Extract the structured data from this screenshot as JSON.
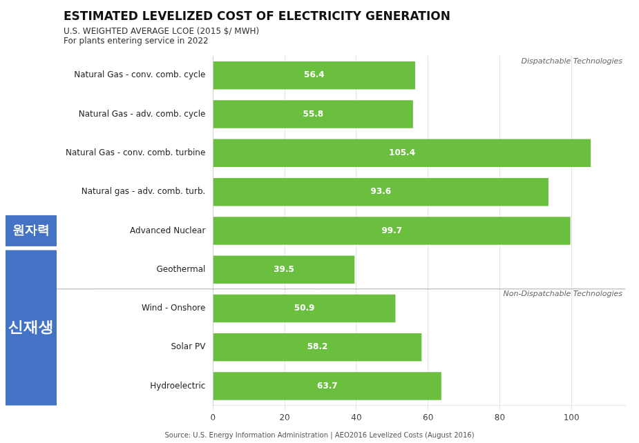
{
  "chart_data": {
    "type": "bar",
    "orientation": "horizontal",
    "title": "ESTIMATED LEVELIZED COST OF ELECTRICITY GENERATION",
    "subtitle": [
      "U.S. WEIGHTED AVERAGE LCOE (2015 $/ MWH)",
      "For plants entering service in 2022"
    ],
    "source": "Source: U.S. Energy Information Administration | AEO2016 Levelized Costs (August 2016)",
    "categories": [
      "Natural Gas - conv. comb. cycle",
      "Natural Gas - adv. comb. cycle",
      "Natural Gas - conv. comb. turbine",
      "Natural gas - adv. comb. turb.",
      "Advanced Nuclear",
      "Geothermal",
      "Wind - Onshore",
      "Solar PV",
      "Hydroelectric"
    ],
    "values": [
      56.4,
      55.8,
      105.4,
      93.6,
      99.7,
      39.5,
      50.9,
      58.2,
      63.7
    ],
    "color": "#6abf3e",
    "xlim": [
      0,
      115
    ],
    "xticks": [
      0,
      20,
      40,
      60,
      80,
      100
    ],
    "grid": true,
    "data_labels": true,
    "annotations": [
      {
        "text": "Dispatchable Technologies",
        "categories": [
          "Natural Gas - conv. comb. cycle",
          "Natural Gas - adv. comb. cycle",
          "Natural Gas - conv. comb. turbine",
          "Natural gas - adv. comb. turb.",
          "Advanced Nuclear",
          "Geothermal"
        ]
      },
      {
        "text": "Non-Dispatchable Technologies",
        "categories": [
          "Wind - Onshore",
          "Solar PV",
          "Hydroelectric"
        ]
      },
      {
        "text": "원자력",
        "categories": [
          "Advanced Nuclear"
        ],
        "color": "#4472c4"
      },
      {
        "text": "신재생",
        "categories": [
          "Geothermal",
          "Wind - Onshore",
          "Solar PV",
          "Hydroelectric"
        ],
        "color": "#4472c4"
      }
    ]
  }
}
